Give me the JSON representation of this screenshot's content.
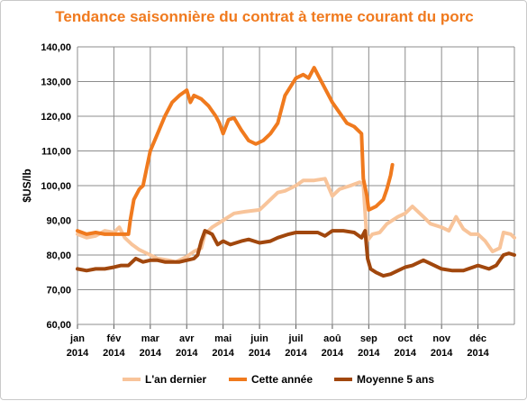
{
  "chart_data": {
    "type": "line",
    "title": "Tendance saisonnière du contrat à terme courant du porc",
    "ylabel": "$US/lb",
    "xlabel": "",
    "ylim": [
      60,
      140
    ],
    "yticks": [
      "60,00",
      "70,00",
      "80,00",
      "90,00",
      "100,00",
      "110,00",
      "120,00",
      "130,00",
      "140,00"
    ],
    "months": [
      {
        "month": "jan",
        "year": "2014"
      },
      {
        "month": "fév",
        "year": "2014"
      },
      {
        "month": "mar",
        "year": "2014"
      },
      {
        "month": "avr",
        "year": "2014"
      },
      {
        "month": "mai",
        "year": "2014"
      },
      {
        "month": "juin",
        "year": "2014"
      },
      {
        "month": "juil",
        "year": "2014"
      },
      {
        "month": "aoû",
        "year": "2014"
      },
      {
        "month": "sep",
        "year": "2014"
      },
      {
        "month": "oct",
        "year": "2014"
      },
      {
        "month": "nov",
        "year": "2014"
      },
      {
        "month": "déc",
        "year": "2014"
      }
    ],
    "x_domain": [
      0,
      12
    ],
    "grid": true,
    "legend_position": "bottom",
    "series": [
      {
        "name": "L'an dernier",
        "color": "#f8c49a",
        "points": [
          [
            0.0,
            86
          ],
          [
            0.25,
            85
          ],
          [
            0.5,
            85.5
          ],
          [
            0.75,
            87
          ],
          [
            1.0,
            86.5
          ],
          [
            1.15,
            88
          ],
          [
            1.3,
            85
          ],
          [
            1.5,
            83
          ],
          [
            1.7,
            81.5
          ],
          [
            2.0,
            80
          ],
          [
            2.2,
            79
          ],
          [
            2.5,
            78.5
          ],
          [
            2.7,
            78
          ],
          [
            3.0,
            79.5
          ],
          [
            3.2,
            81
          ],
          [
            3.4,
            82
          ],
          [
            3.5,
            86
          ],
          [
            3.7,
            88
          ],
          [
            4.0,
            90
          ],
          [
            4.3,
            92
          ],
          [
            4.6,
            92.5
          ],
          [
            5.0,
            93
          ],
          [
            5.3,
            96
          ],
          [
            5.5,
            98
          ],
          [
            5.7,
            98.5
          ],
          [
            6.0,
            100
          ],
          [
            6.2,
            101.5
          ],
          [
            6.5,
            101.5
          ],
          [
            6.8,
            102
          ],
          [
            7.0,
            97
          ],
          [
            7.2,
            99
          ],
          [
            7.5,
            100
          ],
          [
            7.75,
            101
          ],
          [
            7.85,
            100.5
          ],
          [
            7.95,
            84
          ],
          [
            8.1,
            86
          ],
          [
            8.3,
            86.5
          ],
          [
            8.5,
            89
          ],
          [
            8.8,
            91
          ],
          [
            9.0,
            92
          ],
          [
            9.2,
            94
          ],
          [
            9.5,
            91
          ],
          [
            9.7,
            89
          ],
          [
            10.0,
            88
          ],
          [
            10.2,
            87
          ],
          [
            10.4,
            91
          ],
          [
            10.6,
            87.5
          ],
          [
            10.8,
            86
          ],
          [
            11.0,
            86
          ],
          [
            11.2,
            84
          ],
          [
            11.4,
            81
          ],
          [
            11.6,
            82
          ],
          [
            11.7,
            86.5
          ],
          [
            11.9,
            86
          ],
          [
            12.0,
            85
          ]
        ]
      },
      {
        "name": "Cette année",
        "color": "#f07a1e",
        "points": [
          [
            0.0,
            87
          ],
          [
            0.25,
            86
          ],
          [
            0.5,
            86.5
          ],
          [
            0.75,
            86
          ],
          [
            1.0,
            86
          ],
          [
            1.2,
            86
          ],
          [
            1.4,
            86
          ],
          [
            1.45,
            90
          ],
          [
            1.55,
            96
          ],
          [
            1.7,
            99
          ],
          [
            1.8,
            100
          ],
          [
            1.9,
            105
          ],
          [
            2.0,
            110
          ],
          [
            2.2,
            115
          ],
          [
            2.4,
            120
          ],
          [
            2.6,
            124
          ],
          [
            2.8,
            126
          ],
          [
            3.0,
            127.5
          ],
          [
            3.1,
            124
          ],
          [
            3.2,
            126
          ],
          [
            3.4,
            125
          ],
          [
            3.6,
            123
          ],
          [
            3.8,
            120
          ],
          [
            3.9,
            118
          ],
          [
            4.0,
            115
          ],
          [
            4.15,
            119
          ],
          [
            4.3,
            119.5
          ],
          [
            4.5,
            116
          ],
          [
            4.7,
            113
          ],
          [
            4.9,
            112
          ],
          [
            5.1,
            113
          ],
          [
            5.3,
            115
          ],
          [
            5.5,
            118
          ],
          [
            5.7,
            126
          ],
          [
            6.0,
            131
          ],
          [
            6.2,
            132
          ],
          [
            6.35,
            131
          ],
          [
            6.5,
            134
          ],
          [
            6.6,
            132
          ],
          [
            6.8,
            128
          ],
          [
            7.0,
            124
          ],
          [
            7.2,
            121
          ],
          [
            7.4,
            118
          ],
          [
            7.6,
            117
          ],
          [
            7.8,
            115
          ],
          [
            7.85,
            102
          ],
          [
            7.95,
            97
          ],
          [
            8.0,
            93
          ],
          [
            8.2,
            94
          ],
          [
            8.4,
            96
          ],
          [
            8.5,
            99
          ],
          [
            8.6,
            103
          ],
          [
            8.65,
            106
          ]
        ]
      },
      {
        "name": "Moyenne 5 ans",
        "color": "#a1470d",
        "points": [
          [
            0.0,
            76
          ],
          [
            0.25,
            75.5
          ],
          [
            0.5,
            76
          ],
          [
            0.75,
            76
          ],
          [
            1.0,
            76.5
          ],
          [
            1.2,
            77
          ],
          [
            1.4,
            77
          ],
          [
            1.6,
            79
          ],
          [
            1.8,
            78
          ],
          [
            2.0,
            78.5
          ],
          [
            2.2,
            78.5
          ],
          [
            2.4,
            78
          ],
          [
            2.6,
            78
          ],
          [
            2.8,
            78
          ],
          [
            3.0,
            78.5
          ],
          [
            3.2,
            79
          ],
          [
            3.3,
            80
          ],
          [
            3.4,
            84
          ],
          [
            3.5,
            87
          ],
          [
            3.7,
            86
          ],
          [
            3.85,
            83
          ],
          [
            4.0,
            84
          ],
          [
            4.2,
            83
          ],
          [
            4.5,
            84
          ],
          [
            4.7,
            84.5
          ],
          [
            5.0,
            83.5
          ],
          [
            5.3,
            84
          ],
          [
            5.5,
            85
          ],
          [
            5.8,
            86
          ],
          [
            6.0,
            86.5
          ],
          [
            6.3,
            86.5
          ],
          [
            6.6,
            86.5
          ],
          [
            6.8,
            85.5
          ],
          [
            7.0,
            87
          ],
          [
            7.3,
            87
          ],
          [
            7.6,
            86.5
          ],
          [
            7.8,
            85
          ],
          [
            7.9,
            87
          ],
          [
            7.97,
            79
          ],
          [
            8.05,
            76
          ],
          [
            8.2,
            75
          ],
          [
            8.4,
            74
          ],
          [
            8.6,
            74.5
          ],
          [
            8.8,
            75.5
          ],
          [
            9.0,
            76.5
          ],
          [
            9.2,
            77
          ],
          [
            9.5,
            78.5
          ],
          [
            9.8,
            77
          ],
          [
            10.0,
            76
          ],
          [
            10.3,
            75.5
          ],
          [
            10.6,
            75.5
          ],
          [
            11.0,
            77
          ],
          [
            11.3,
            76
          ],
          [
            11.5,
            77
          ],
          [
            11.7,
            80
          ],
          [
            11.85,
            80.5
          ],
          [
            12.0,
            80
          ]
        ]
      }
    ]
  }
}
